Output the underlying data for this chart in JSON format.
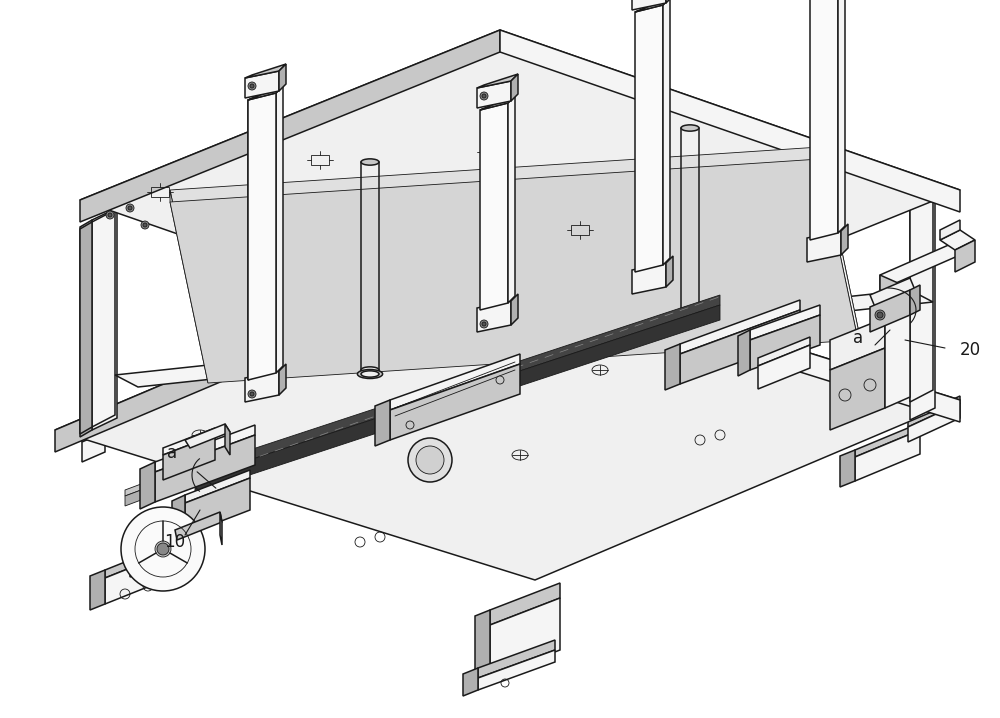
{
  "background_color": "#ffffff",
  "line_color": "#1a1a1a",
  "figure_width": 10.0,
  "figure_height": 7.18,
  "dpi": 100,
  "fill_top": "#f0f0f0",
  "fill_side_left": "#d8d8d8",
  "fill_side_right": "#e8e8e8",
  "fill_dark": "#b0b0b0",
  "fill_mid": "#c8c8c8",
  "fill_white": "#fafafa",
  "fill_very_light": "#f5f5f5",
  "label_a": "a",
  "label_10": "10",
  "label_20": "20",
  "lw_main": 1.1,
  "lw_thin": 0.6,
  "lw_thick": 1.5
}
